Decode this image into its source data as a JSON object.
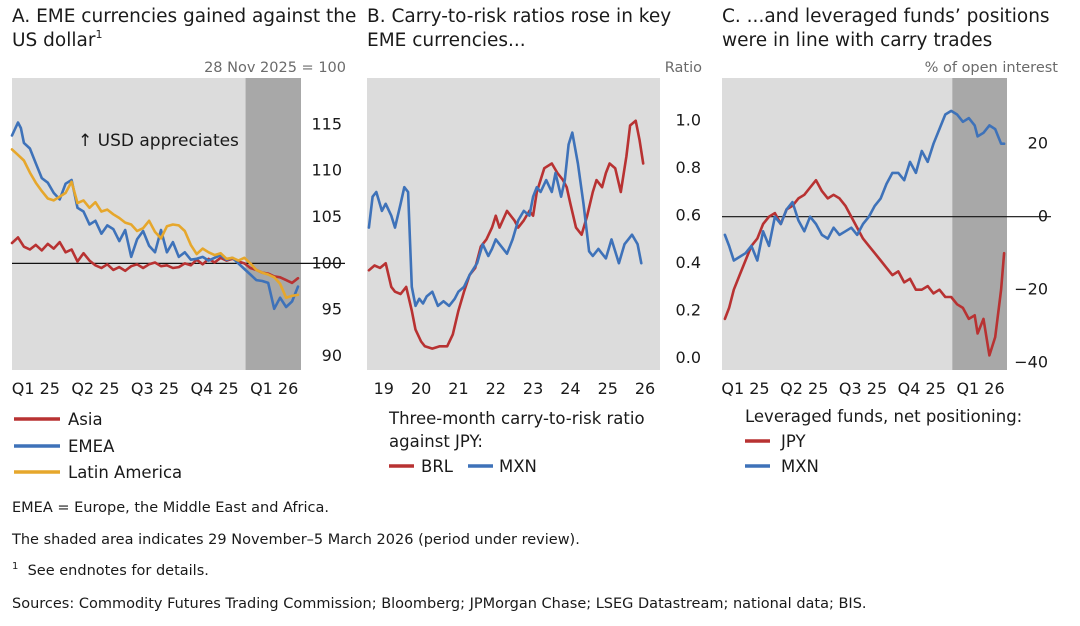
{
  "chart_data": [
    {
      "type": "line",
      "title": "A. EME currencies gained against the US dollar",
      "title_lines": [
        "A. EME currencies gained against the",
        "US dollar"
      ],
      "title_sup": "1",
      "unit_label": "28 Nov 2025 = 100",
      "annotation": "↑ USD appreciates",
      "x_ticks": [
        "Q1 25",
        "Q2 25",
        "Q3 25",
        "Q4 25",
        "Q1 26"
      ],
      "x_tick_pos": [
        0.4,
        1.4,
        2.4,
        3.4,
        4.4
      ],
      "xlim": [
        0,
        4.85
      ],
      "y_ticks": [
        "90",
        "95",
        "100",
        "105",
        "110",
        "115"
      ],
      "y_tick_values": [
        90,
        95,
        100,
        105,
        110,
        115
      ],
      "ylim": [
        88.5,
        120
      ],
      "reference_line": 100,
      "shaded_x": [
        3.92,
        4.85
      ],
      "legend": [
        "Asia",
        "EMEA",
        "Latin America"
      ],
      "series": [
        {
          "name": "Asia",
          "color": "#b83232",
          "x": [
            0,
            0.1,
            0.2,
            0.3,
            0.4,
            0.5,
            0.6,
            0.7,
            0.8,
            0.9,
            1.0,
            1.1,
            1.2,
            1.3,
            1.4,
            1.5,
            1.6,
            1.7,
            1.8,
            1.9,
            2.0,
            2.1,
            2.2,
            2.3,
            2.4,
            2.5,
            2.6,
            2.7,
            2.8,
            2.9,
            3.0,
            3.1,
            3.2,
            3.3,
            3.4,
            3.5,
            3.6,
            3.7,
            3.8,
            3.9,
            4.0,
            4.1,
            4.2,
            4.3,
            4.4,
            4.5,
            4.6,
            4.7,
            4.8
          ],
          "values": [
            102.2,
            102.8,
            101.8,
            101.5,
            102,
            101.4,
            102.1,
            101.6,
            102.3,
            101.2,
            101.5,
            100.2,
            101.1,
            100.3,
            99.8,
            99.5,
            99.9,
            99.3,
            99.6,
            99.2,
            99.7,
            99.9,
            99.5,
            99.9,
            100.1,
            99.7,
            99.8,
            99.5,
            99.6,
            100,
            99.8,
            100.4,
            99.9,
            100.5,
            100.1,
            100.6,
            100.3,
            100.5,
            100.2,
            100,
            99.5,
            99.3,
            99,
            98.9,
            98.6,
            98.5,
            98.2,
            97.9,
            98.4
          ]
        },
        {
          "name": "EMEA",
          "color": "#3e72b9",
          "x": [
            0,
            0.05,
            0.1,
            0.15,
            0.2,
            0.3,
            0.4,
            0.5,
            0.6,
            0.7,
            0.8,
            0.9,
            1.0,
            1.1,
            1.2,
            1.3,
            1.4,
            1.5,
            1.6,
            1.7,
            1.8,
            1.9,
            2.0,
            2.1,
            2.2,
            2.3,
            2.4,
            2.5,
            2.6,
            2.7,
            2.8,
            2.9,
            3.0,
            3.1,
            3.2,
            3.3,
            3.4,
            3.5,
            3.6,
            3.7,
            3.8,
            3.9,
            4.0,
            4.1,
            4.2,
            4.3,
            4.4,
            4.5,
            4.6,
            4.7,
            4.8
          ],
          "values": [
            113.8,
            114.5,
            115.2,
            114.6,
            113,
            112.4,
            110.8,
            109.2,
            108.7,
            107.6,
            106.9,
            108.6,
            109,
            106,
            105.6,
            104.2,
            104.6,
            103.2,
            104.1,
            103.7,
            102.4,
            103.6,
            100.7,
            102.6,
            103.5,
            101.9,
            101.2,
            103.6,
            101.2,
            102.3,
            100.7,
            101.2,
            100.4,
            100.5,
            100.7,
            100.3,
            100.6,
            100.9,
            100.4,
            100.6,
            100,
            99.4,
            98.8,
            98.2,
            98.1,
            97.9,
            95.1,
            96.3,
            95.3,
            95.9,
            97.5
          ]
        },
        {
          "name": "Latin America",
          "color": "#e6a72c",
          "x": [
            0,
            0.1,
            0.2,
            0.3,
            0.4,
            0.5,
            0.6,
            0.7,
            0.8,
            0.9,
            1.0,
            1.1,
            1.2,
            1.3,
            1.4,
            1.5,
            1.6,
            1.7,
            1.8,
            1.9,
            2.0,
            2.1,
            2.2,
            2.3,
            2.4,
            2.5,
            2.6,
            2.7,
            2.8,
            2.9,
            3.0,
            3.1,
            3.2,
            3.3,
            3.4,
            3.5,
            3.6,
            3.7,
            3.8,
            3.9,
            4.0,
            4.1,
            4.2,
            4.3,
            4.4,
            4.5,
            4.6,
            4.7,
            4.8
          ],
          "values": [
            112.3,
            111.7,
            111.1,
            109.8,
            108.7,
            107.8,
            107,
            106.8,
            107.2,
            107.6,
            108.8,
            106.5,
            106.8,
            106,
            106.6,
            105.6,
            105.8,
            105.3,
            104.9,
            104.4,
            104.2,
            103.5,
            103.8,
            104.6,
            103.4,
            102.7,
            104,
            104.2,
            104.1,
            103.5,
            102,
            101,
            101.6,
            101.2,
            100.9,
            101.1,
            100.5,
            100.6,
            100.3,
            100.6,
            100,
            99.3,
            99,
            98.8,
            98.5,
            97.8,
            96.3,
            96.5,
            96.6
          ]
        }
      ]
    },
    {
      "type": "line",
      "title": "B. Carry-to-risk ratios rose in key EME currencies...",
      "title_lines": [
        "B. Carry-to-risk ratios rose in key",
        "EME currencies..."
      ],
      "unit_label": "Ratio",
      "x_ticks": [
        "19",
        "20",
        "21",
        "22",
        "23",
        "24",
        "25",
        "26"
      ],
      "x_tick_pos": [
        19,
        20,
        21,
        22,
        23,
        24,
        25,
        26
      ],
      "xlim": [
        18.55,
        26.4
      ],
      "y_ticks": [
        "0.0",
        "0.2",
        "0.4",
        "0.6",
        "0.8",
        "1.0"
      ],
      "y_tick_values": [
        0,
        0.2,
        0.4,
        0.6,
        0.8,
        1.0
      ],
      "ylim": [
        -0.05,
        1.18
      ],
      "legend_title_lines": [
        "Three-month carry-to-risk ratio",
        "against JPY:"
      ],
      "legend": [
        "BRL",
        "MXN"
      ],
      "series": [
        {
          "name": "BRL",
          "color": "#b83232",
          "x": [
            18.6,
            18.75,
            18.9,
            19.05,
            19.2,
            19.3,
            19.45,
            19.6,
            19.75,
            19.85,
            20,
            20.1,
            20.3,
            20.5,
            20.7,
            20.85,
            21,
            21.15,
            21.3,
            21.45,
            21.6,
            21.75,
            21.9,
            22,
            22.1,
            22.3,
            22.5,
            22.6,
            22.75,
            22.9,
            23,
            23.1,
            23.3,
            23.5,
            23.65,
            23.8,
            23.9,
            24,
            24.15,
            24.3,
            24.45,
            24.6,
            24.7,
            24.85,
            24.95,
            25.05,
            25.2,
            25.35,
            25.5,
            25.6,
            25.75,
            25.85,
            25.95
          ],
          "values": [
            0.37,
            0.39,
            0.38,
            0.4,
            0.3,
            0.28,
            0.27,
            0.3,
            0.2,
            0.12,
            0.07,
            0.05,
            0.04,
            0.05,
            0.05,
            0.1,
            0.2,
            0.28,
            0.35,
            0.38,
            0.47,
            0.5,
            0.55,
            0.6,
            0.55,
            0.62,
            0.58,
            0.55,
            0.58,
            0.62,
            0.6,
            0.7,
            0.8,
            0.82,
            0.78,
            0.75,
            0.72,
            0.65,
            0.55,
            0.52,
            0.6,
            0.7,
            0.75,
            0.72,
            0.78,
            0.82,
            0.8,
            0.7,
            0.85,
            0.98,
            1.0,
            0.92,
            0.82
          ]
        },
        {
          "name": "MXN",
          "color": "#3e72b9",
          "x": [
            18.6,
            18.7,
            18.8,
            18.95,
            19.05,
            19.2,
            19.3,
            19.45,
            19.55,
            19.65,
            19.75,
            19.85,
            19.95,
            20.05,
            20.15,
            20.3,
            20.45,
            20.6,
            20.75,
            20.9,
            21,
            21.15,
            21.3,
            21.5,
            21.65,
            21.8,
            21.9,
            22,
            22.15,
            22.3,
            22.45,
            22.6,
            22.75,
            22.9,
            23,
            23.1,
            23.2,
            23.35,
            23.5,
            23.6,
            23.75,
            23.85,
            23.95,
            24.05,
            24.2,
            24.35,
            24.5,
            24.6,
            24.75,
            24.85,
            24.95,
            25.1,
            25.3,
            25.45,
            25.55,
            25.65,
            25.8,
            25.9
          ],
          "values": [
            0.55,
            0.68,
            0.7,
            0.62,
            0.65,
            0.6,
            0.55,
            0.65,
            0.72,
            0.7,
            0.3,
            0.22,
            0.25,
            0.23,
            0.26,
            0.28,
            0.22,
            0.24,
            0.22,
            0.25,
            0.28,
            0.3,
            0.35,
            0.4,
            0.48,
            0.43,
            0.46,
            0.5,
            0.47,
            0.44,
            0.5,
            0.58,
            0.62,
            0.6,
            0.68,
            0.72,
            0.7,
            0.75,
            0.7,
            0.78,
            0.68,
            0.75,
            0.9,
            0.95,
            0.82,
            0.65,
            0.45,
            0.43,
            0.46,
            0.44,
            0.42,
            0.5,
            0.4,
            0.48,
            0.5,
            0.52,
            0.48,
            0.4
          ]
        }
      ]
    },
    {
      "type": "line",
      "title": "C. ...and leveraged funds’ positions were in line with carry trades",
      "title_lines": [
        "C. ...and leveraged funds’ positions",
        "were in line with carry trades"
      ],
      "unit_label": "% of open interest",
      "x_ticks": [
        "Q1 25",
        "Q2 25",
        "Q3 25",
        "Q4 25",
        "Q1 26"
      ],
      "x_tick_pos": [
        0.4,
        1.4,
        2.4,
        3.4,
        4.4
      ],
      "xlim": [
        0,
        4.85
      ],
      "y_ticks": [
        "−40",
        "−20",
        "0",
        "20"
      ],
      "y_tick_values": [
        -40,
        -20,
        0,
        20
      ],
      "ylim": [
        -42,
        38
      ],
      "reference_line": 0,
      "shaded_x": [
        3.92,
        4.85
      ],
      "legend_title": "Leveraged funds, net positioning:",
      "legend": [
        "JPY",
        "MXN"
      ],
      "series": [
        {
          "name": "JPY",
          "color": "#b83232",
          "x": [
            0.05,
            0.12,
            0.2,
            0.3,
            0.4,
            0.5,
            0.6,
            0.7,
            0.8,
            0.9,
            1.0,
            1.1,
            1.2,
            1.3,
            1.4,
            1.5,
            1.6,
            1.7,
            1.8,
            1.9,
            2.0,
            2.1,
            2.2,
            2.3,
            2.4,
            2.5,
            2.6,
            2.7,
            2.8,
            2.9,
            3.0,
            3.1,
            3.2,
            3.3,
            3.4,
            3.5,
            3.6,
            3.7,
            3.8,
            3.9,
            4.0,
            4.1,
            4.2,
            4.3,
            4.35,
            4.45,
            4.55,
            4.65,
            4.75,
            4.8
          ],
          "values": [
            -28,
            -25,
            -20,
            -16,
            -12,
            -8,
            -6,
            -2,
            0,
            1,
            -2,
            2,
            3,
            5,
            6,
            8,
            10,
            7,
            5,
            6,
            5,
            3,
            0,
            -3,
            -6,
            -8,
            -10,
            -12,
            -14,
            -16,
            -15,
            -18,
            -17,
            -20,
            -20,
            -19,
            -21,
            -20,
            -22,
            -22,
            -24,
            -25,
            -28,
            -27,
            -32,
            -28,
            -38,
            -33,
            -20,
            -10
          ]
        },
        {
          "name": "MXN",
          "color": "#3e72b9",
          "x": [
            0.05,
            0.12,
            0.2,
            0.3,
            0.4,
            0.5,
            0.6,
            0.7,
            0.8,
            0.9,
            1.0,
            1.1,
            1.2,
            1.3,
            1.4,
            1.5,
            1.6,
            1.7,
            1.8,
            1.9,
            2.0,
            2.1,
            2.2,
            2.3,
            2.4,
            2.5,
            2.6,
            2.7,
            2.8,
            2.9,
            3.0,
            3.1,
            3.2,
            3.3,
            3.4,
            3.5,
            3.6,
            3.7,
            3.8,
            3.9,
            4.0,
            4.1,
            4.2,
            4.3,
            4.35,
            4.45,
            4.55,
            4.65,
            4.75,
            4.8
          ],
          "values": [
            -5,
            -8,
            -12,
            -11,
            -10,
            -8,
            -12,
            -4,
            -8,
            0,
            -2,
            2,
            4,
            -1,
            -4,
            0,
            -2,
            -5,
            -6,
            -3,
            -5,
            -4,
            -3,
            -5,
            -2,
            0,
            3,
            5,
            9,
            12,
            12,
            10,
            15,
            12,
            18,
            15,
            20,
            24,
            28,
            29,
            28,
            26,
            27,
            25,
            22,
            23,
            25,
            24,
            20,
            20
          ]
        }
      ]
    }
  ],
  "footnotes": {
    "abbrev": "EMEA = Europe, the Middle East and Africa.",
    "shaded": "The shaded area indicates 29 November–5 March 2026 (period under review).",
    "note_mark": "1",
    "note": "See endnotes for details.",
    "sources": "Sources: Commodity Futures Trading Commission; Bloomberg; JPMorgan Chase; LSEG Datastream; national data; BIS."
  }
}
